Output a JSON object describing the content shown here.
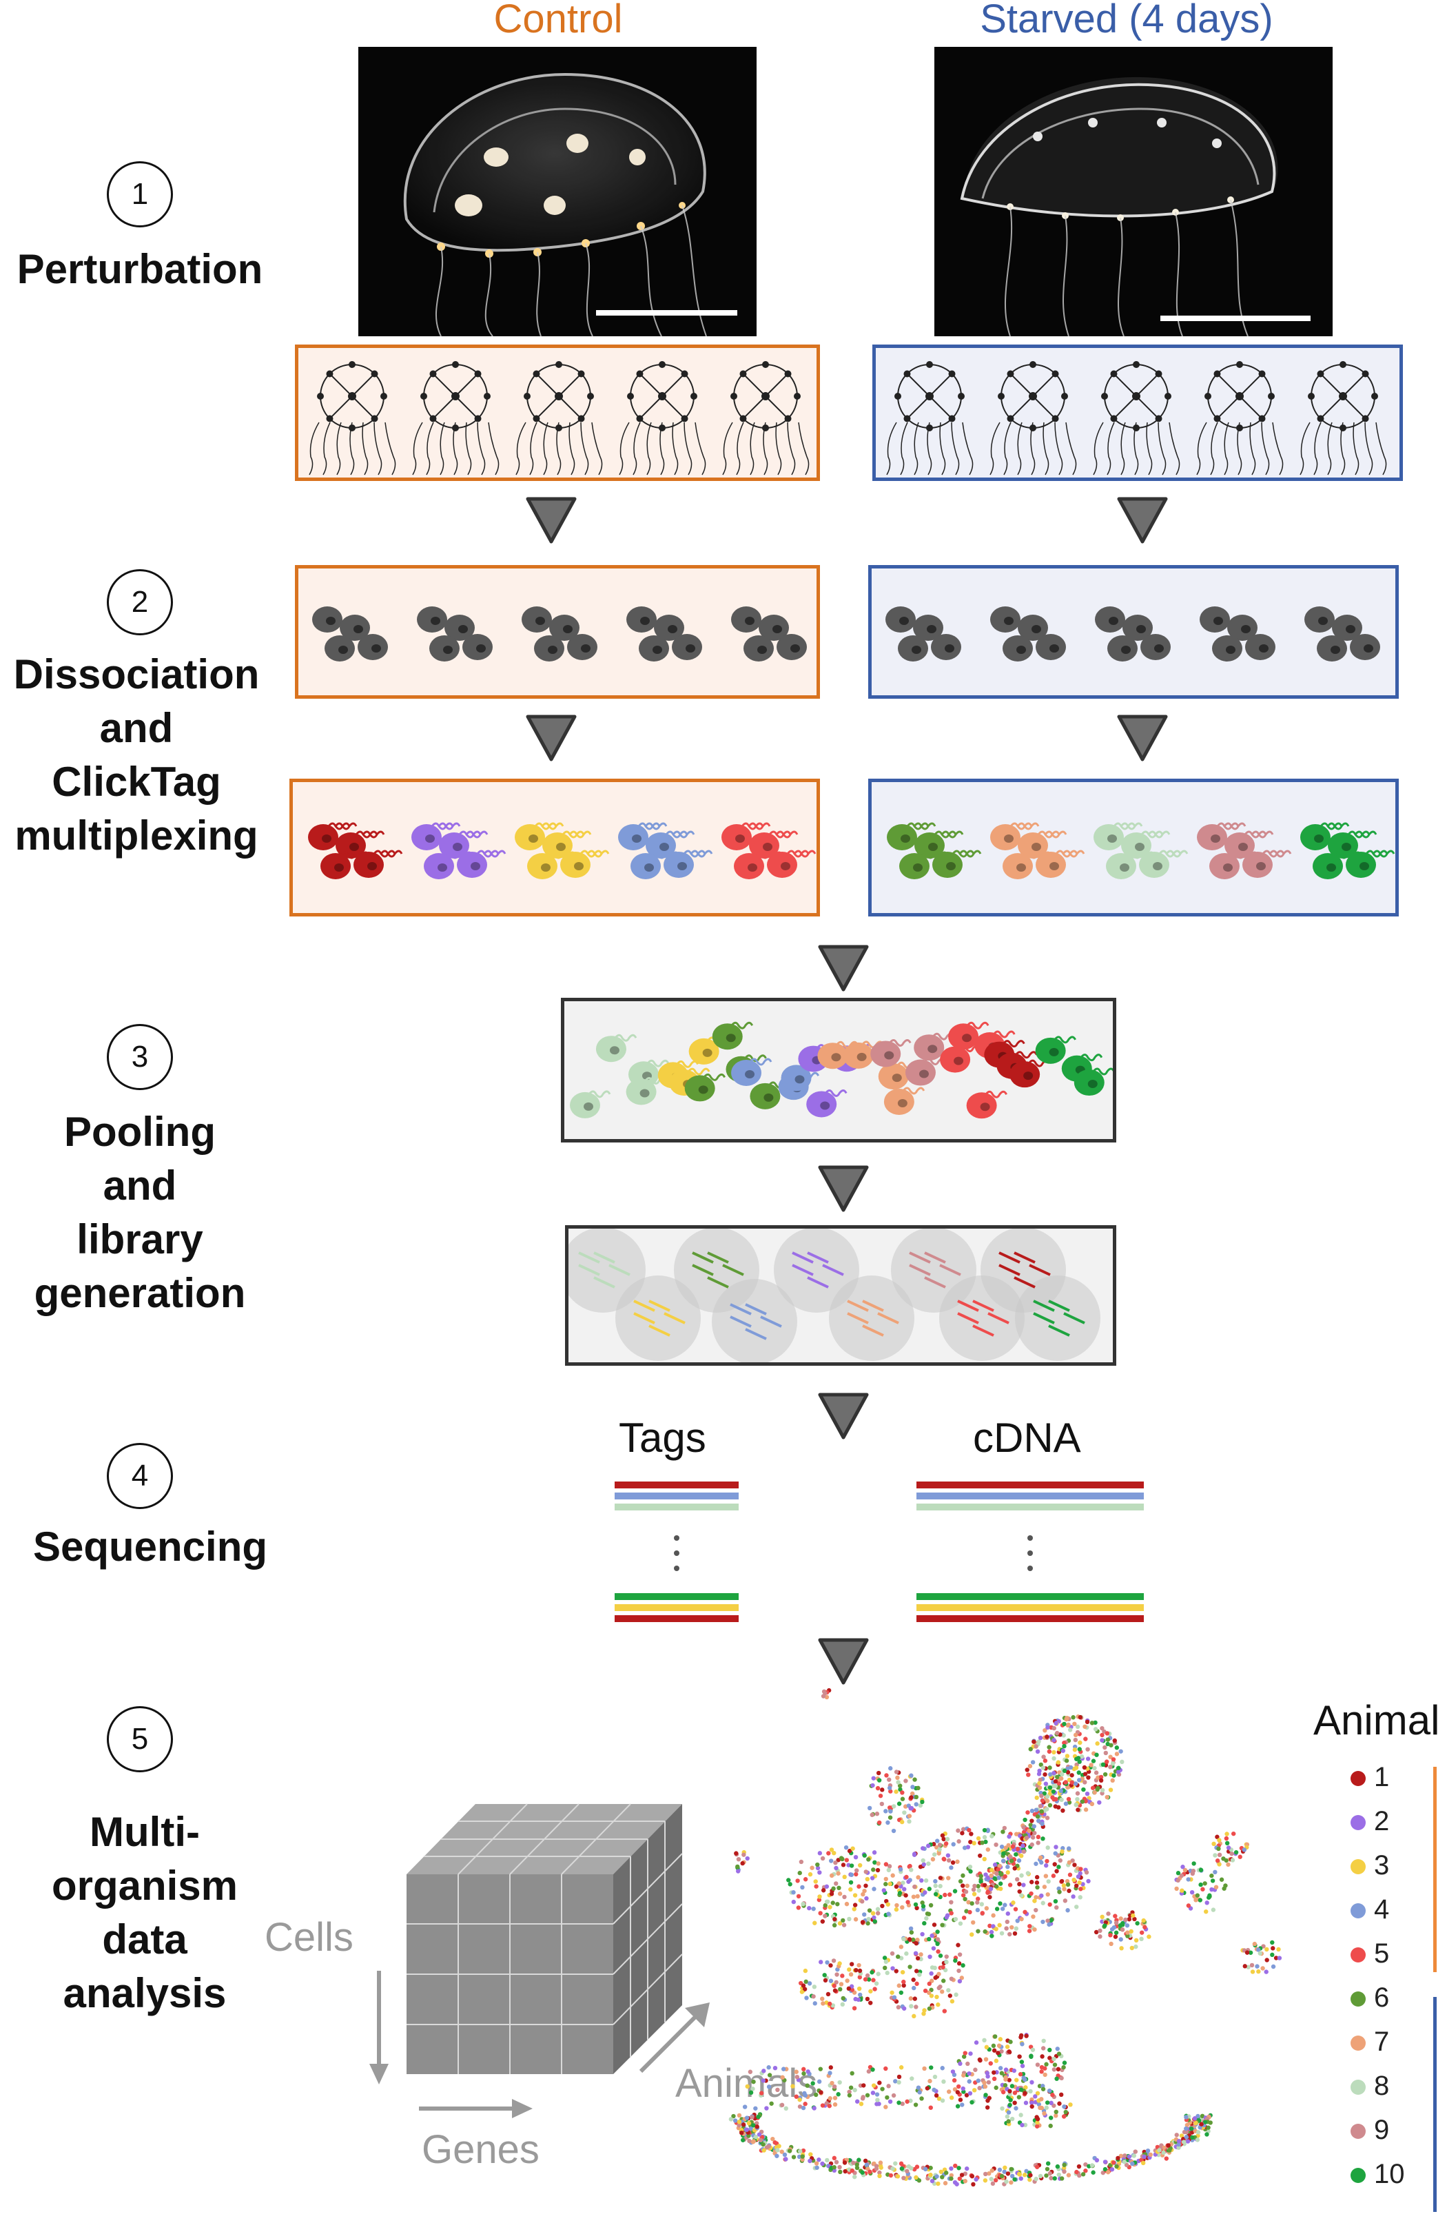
{
  "figure": {
    "conditions": {
      "control": {
        "label": "Control",
        "color": "#d9731f",
        "fill": "#fdf1ea"
      },
      "starved": {
        "label": "Starved (4 days)",
        "color": "#3a5ea8",
        "fill": "#eef0f8"
      }
    },
    "steps": [
      {
        "number": "1",
        "label": "Perturbation"
      },
      {
        "number": "2",
        "label": "Dissociation\nand\nClickTag\nmultiplexing"
      },
      {
        "number": "3",
        "label": "Pooling\nand\nlibrary\ngeneration"
      },
      {
        "number": "4",
        "label": "Sequencing"
      },
      {
        "number": "5",
        "label": "Multi-\norganism\ndata\nanalysis"
      }
    ],
    "sequencing": {
      "tags_label": "Tags",
      "cdna_label": "cDNA"
    },
    "cube": {
      "cells_label": "Cells",
      "genes_label": "Genes",
      "animals_label": "Animals"
    },
    "legend": {
      "title": "Animal",
      "animals": [
        {
          "id": "1",
          "color": "#b81b1b"
        },
        {
          "id": "2",
          "color": "#9b6ee6"
        },
        {
          "id": "3",
          "color": "#f4cf44"
        },
        {
          "id": "4",
          "color": "#7f9bd8"
        },
        {
          "id": "5",
          "color": "#ee4c4c"
        },
        {
          "id": "6",
          "color": "#5f9b36"
        },
        {
          "id": "7",
          "color": "#eea277"
        },
        {
          "id": "8",
          "color": "#bcdcbc"
        },
        {
          "id": "9",
          "color": "#cf8a8e"
        },
        {
          "id": "10",
          "color": "#1ea43f"
        }
      ],
      "group_colors": {
        "control": "#ee8a3a",
        "starved": "#3a5ea8"
      }
    },
    "cell_color": "#595959"
  }
}
